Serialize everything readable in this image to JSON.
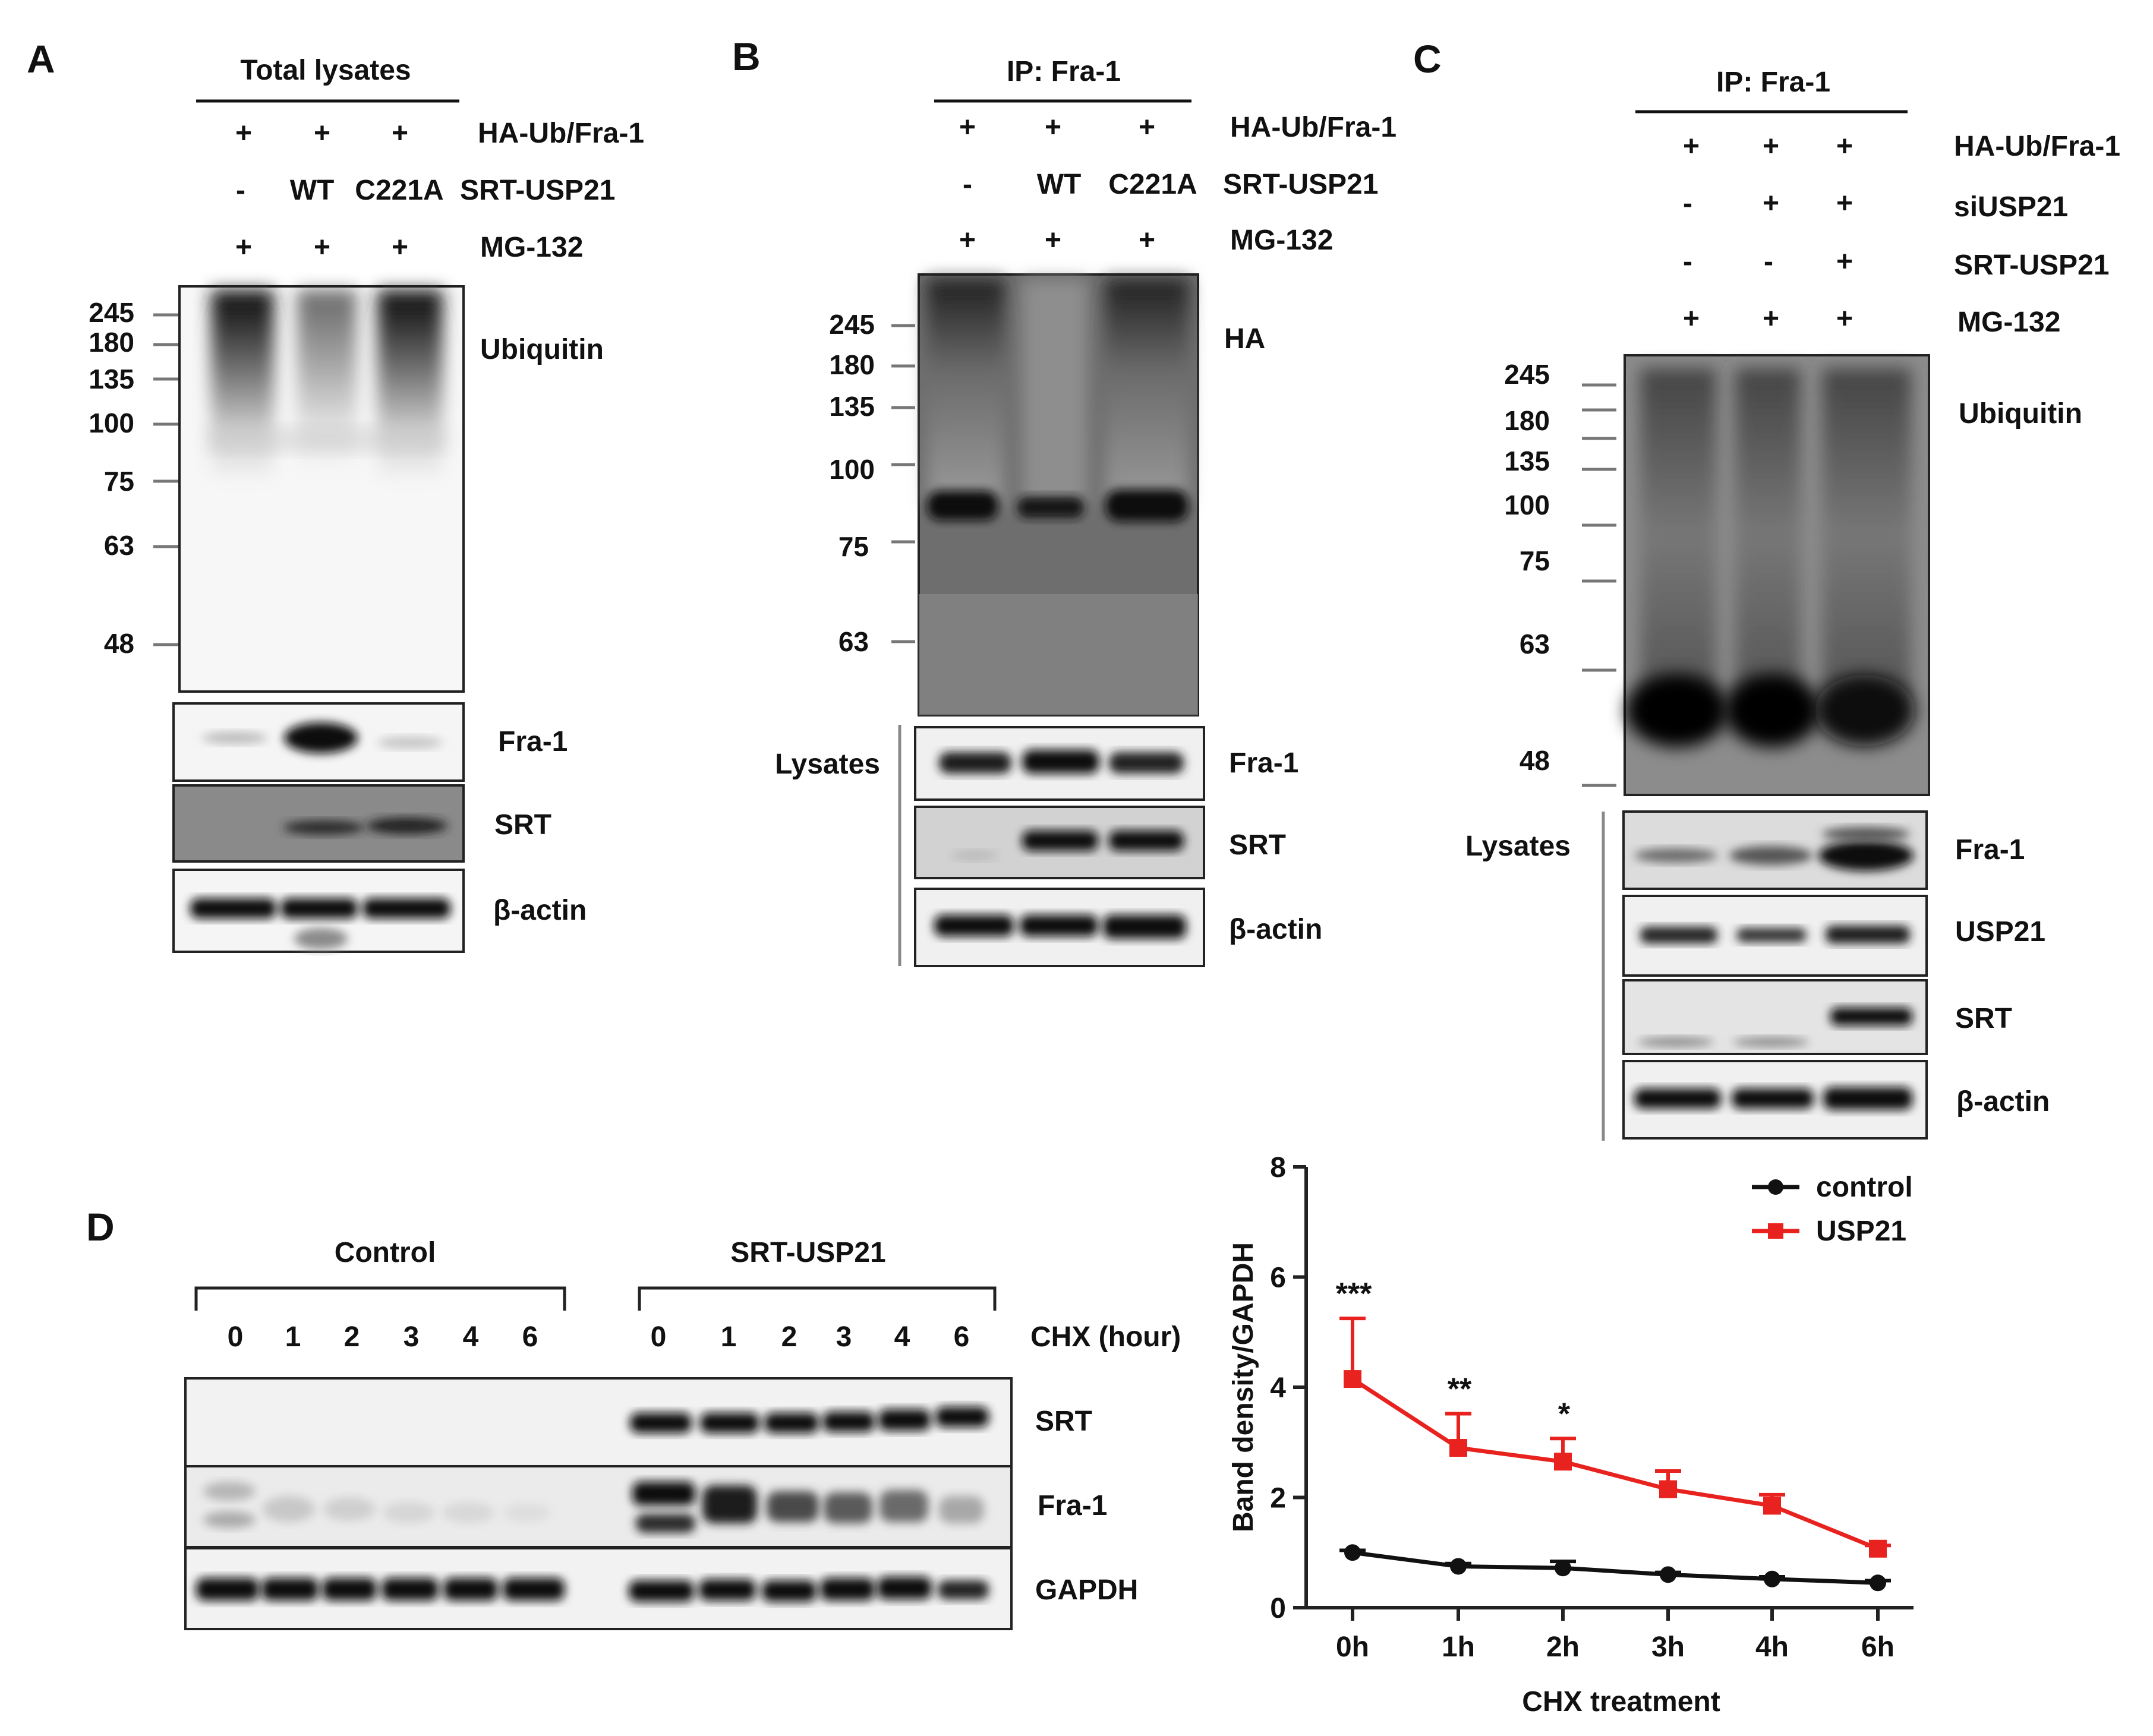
{
  "panel_A": {
    "letter": "A",
    "header": "Total lysates",
    "rows": [
      {
        "label": "HA-Ub/Fra-1",
        "cells": [
          "+",
          "+",
          "+"
        ]
      },
      {
        "label": "SRT-USP21",
        "cells": [
          "-",
          "WT",
          "C221A"
        ]
      },
      {
        "label": "MG-132",
        "cells": [
          "+",
          "+",
          "+"
        ]
      }
    ],
    "markers": [
      "245",
      "180",
      "135",
      "100",
      "75",
      "63",
      "48"
    ],
    "blots": [
      "Ubiquitin",
      "Fra-1",
      "SRT",
      "β-actin"
    ]
  },
  "panel_B": {
    "letter": "B",
    "header": "IP: Fra-1",
    "rows": [
      {
        "label": "HA-Ub/Fra-1",
        "cells": [
          "+",
          "+",
          "+"
        ]
      },
      {
        "label": "SRT-USP21",
        "cells": [
          "-",
          "WT",
          "C221A"
        ]
      },
      {
        "label": "MG-132",
        "cells": [
          "+",
          "+",
          "+"
        ]
      }
    ],
    "markers": [
      "245",
      "180",
      "135",
      "100",
      "75",
      "63"
    ],
    "blots": [
      "HA",
      "Fra-1",
      "SRT",
      "β-actin"
    ],
    "lysates_label": "Lysates"
  },
  "panel_C": {
    "letter": "C",
    "header": "IP: Fra-1",
    "rows": [
      {
        "label": "HA-Ub/Fra-1",
        "cells": [
          "+",
          "+",
          "+"
        ]
      },
      {
        "label": "siUSP21",
        "cells": [
          "-",
          "+",
          "+"
        ]
      },
      {
        "label": "SRT-USP21",
        "cells": [
          "-",
          "-",
          "+"
        ]
      },
      {
        "label": "MG-132",
        "cells": [
          "+",
          "+",
          "+"
        ]
      }
    ],
    "markers": [
      "245",
      "180",
      "135",
      "100",
      "75",
      "63",
      "48"
    ],
    "blots": [
      "Ubiquitin",
      "Fra-1",
      "USP21",
      "SRT",
      "β-actin"
    ],
    "lysates_label": "Lysates"
  },
  "panel_D": {
    "letter": "D",
    "group_control": "Control",
    "group_srt": "SRT-USP21",
    "timepoints": [
      "0",
      "1",
      "2",
      "3",
      "4",
      "6"
    ],
    "chx_label": "CHX (hour)",
    "blots": [
      "SRT",
      "Fra-1",
      "GAPDH"
    ]
  },
  "chart_data": {
    "type": "line",
    "xlabel": "CHX treatment",
    "ylabel": "Band density/GAPDH",
    "categories": [
      "0h",
      "1h",
      "2h",
      "3h",
      "4h",
      "6h"
    ],
    "ylim": [
      0,
      8
    ],
    "yticks": [
      "0",
      "2",
      "4",
      "6",
      "8"
    ],
    "series": [
      {
        "name": "control",
        "color": "#111111",
        "marker": "circle",
        "values": [
          1.0,
          0.75,
          0.72,
          0.6,
          0.52,
          0.45
        ],
        "errors": [
          0.04,
          0.05,
          0.12,
          0.04,
          0.04,
          0.04
        ]
      },
      {
        "name": "USP21",
        "color": "#e8231f",
        "marker": "square",
        "values": [
          4.15,
          2.9,
          2.65,
          2.15,
          1.85,
          1.07
        ],
        "errors": [
          1.1,
          0.62,
          0.42,
          0.33,
          0.2,
          0.06
        ]
      }
    ],
    "significance": [
      "***",
      "**",
      "*",
      "",
      "",
      ""
    ],
    "legend_position": "top-right"
  }
}
